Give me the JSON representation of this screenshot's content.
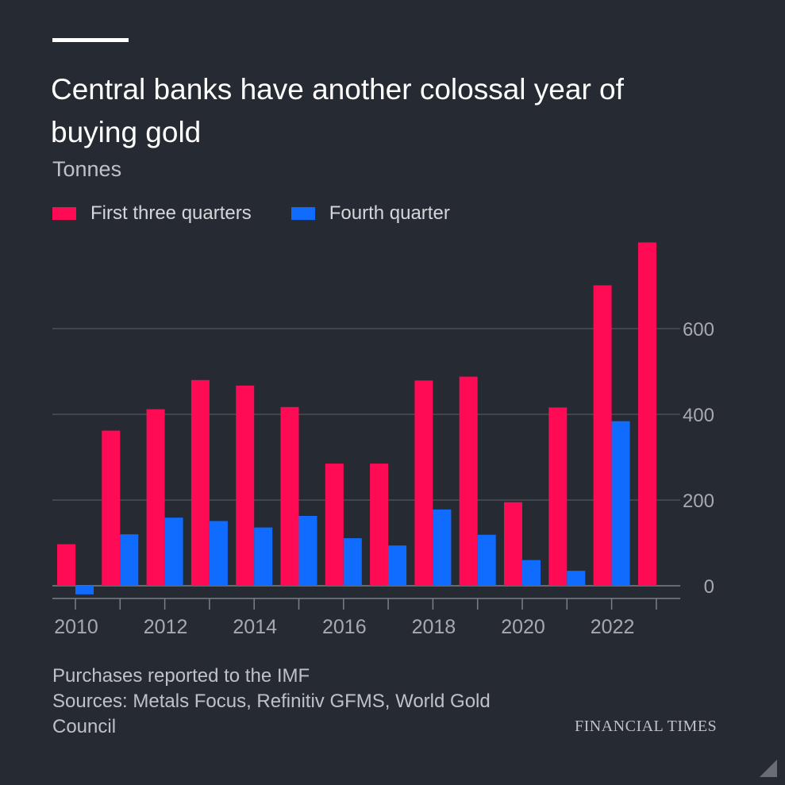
{
  "title": "Central banks have another colossal year of buying gold",
  "subtitle": "Tonnes",
  "footnote": "Purchases reported to the IMF",
  "sources": "Sources: Metals Focus, Refinitiv GFMS, World Gold Council",
  "brand": "FINANCIAL TIMES",
  "colors": {
    "first": "#ff0a54",
    "fourth": "#0f6cff",
    "grid": "#4a4e57",
    "background": "#262a33"
  },
  "chart_data": {
    "type": "bar",
    "title": "Central banks have another colossal year of buying gold",
    "ylabel": "Tonnes",
    "categories": [
      "2010",
      "2011",
      "2012",
      "2013",
      "2014",
      "2015",
      "2016",
      "2017",
      "2018",
      "2019",
      "2020",
      "2021",
      "2022",
      "2023"
    ],
    "series": [
      {
        "name": "First three quarters",
        "values": [
          97,
          362,
          412,
          480,
          467,
          417,
          285,
          285,
          479,
          488,
          195,
          416,
          701,
          801
        ]
      },
      {
        "name": "Fourth quarter",
        "values": [
          -20,
          120,
          159,
          151,
          136,
          163,
          111,
          94,
          178,
          119,
          60,
          35,
          384,
          null
        ]
      }
    ],
    "ylim": [
      -30,
      820
    ],
    "yticks": [
      "0",
      "200",
      "400",
      "600"
    ],
    "ytick_values": [
      0,
      200,
      400,
      600
    ],
    "xtick_labels": [
      "2010",
      "2012",
      "2014",
      "2016",
      "2018",
      "2020",
      "2022"
    ],
    "grid": true,
    "legend": "top-left",
    "yaxis_side": "right"
  }
}
